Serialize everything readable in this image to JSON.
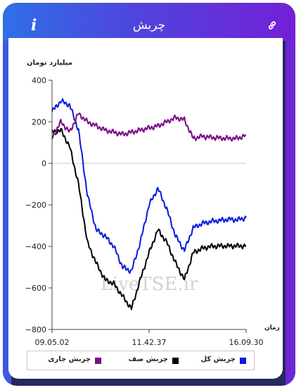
{
  "header": {
    "title": "چربش",
    "info_icon": "info-icon",
    "link_icon": "link-icon"
  },
  "watermark": "LiveTSE.ir",
  "chart_data": {
    "type": "line",
    "ylabel": "میلیارد تومان",
    "xlabel": "زمان",
    "ylim": [
      -800,
      400
    ],
    "yticks": [
      -800,
      -600,
      -400,
      -200,
      0,
      200,
      400
    ],
    "xticks": [
      "09.05.02",
      "11.42.37",
      "16.09.30"
    ],
    "x": [
      "09.05",
      "09.15",
      "09.30",
      "09.45",
      "10.00",
      "10.15",
      "10.30",
      "10.45",
      "11.00",
      "11.15",
      "11.30",
      "11.45",
      "12.00",
      "12.15",
      "12.30",
      "12.45",
      "13.00",
      "13.30",
      "14.00",
      "14.30",
      "15.00",
      "15.30",
      "16.09"
    ],
    "series": [
      {
        "name": "چربش کل",
        "color": "#0a19e0",
        "values": [
          250,
          300,
          280,
          160,
          -150,
          -320,
          -350,
          -400,
          -500,
          -520,
          -380,
          -200,
          -120,
          -220,
          -350,
          -420,
          -310,
          -290,
          -280,
          -275,
          -270,
          -272,
          -262
        ]
      },
      {
        "name": "چربش صف",
        "color": "#000000",
        "values": [
          150,
          160,
          80,
          -100,
          -380,
          -480,
          -560,
          -580,
          -640,
          -700,
          -560,
          -430,
          -320,
          -380,
          -480,
          -560,
          -430,
          -410,
          -400,
          -398,
          -398,
          -398,
          -398
        ]
      },
      {
        "name": "چربش جاری",
        "color": "#7a0a87",
        "values": [
          120,
          200,
          150,
          240,
          200,
          180,
          160,
          150,
          140,
          150,
          160,
          170,
          180,
          200,
          220,
          210,
          120,
          130,
          125,
          122,
          120,
          120,
          135
        ]
      }
    ],
    "legend_position": "bottom",
    "grid": "y-zero-line"
  }
}
